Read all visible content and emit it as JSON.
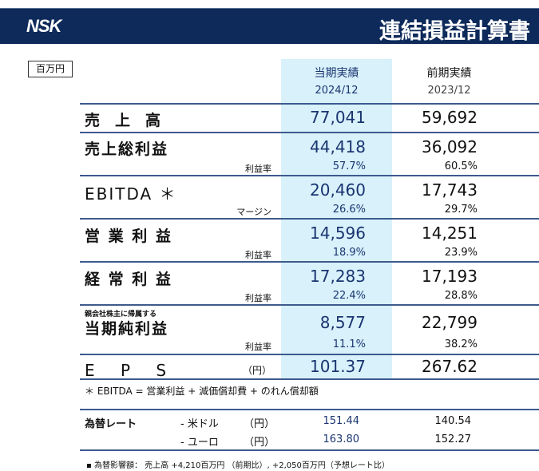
{
  "header": {
    "logo": "NSK",
    "title": "連結損益計算書"
  },
  "unit_label": "百万円",
  "columns": [
    {
      "label": "当期実績",
      "period": "2024/12"
    },
    {
      "label": "前期実績",
      "period": "2023/12"
    }
  ],
  "rows": [
    {
      "label": "売　上　高",
      "current": "77,041",
      "previous": "59,692"
    },
    {
      "label": "売上総利益",
      "sub_label": "利益率",
      "current": "44,418",
      "previous": "36,092",
      "current_rate": "57.7%",
      "previous_rate": "60.5%"
    },
    {
      "label": "EBITDA ＊",
      "sub_label": "マージン",
      "current": "20,460",
      "previous": "17,743",
      "current_rate": "26.6%",
      "previous_rate": "29.7%"
    },
    {
      "label": "営 業 利 益",
      "sub_label": "利益率",
      "current": "14,596",
      "previous": "14,251",
      "current_rate": "18.9%",
      "previous_rate": "23.9%"
    },
    {
      "label": "経 常 利 益",
      "sub_label": "利益率",
      "current": "17,283",
      "previous": "17,193",
      "current_rate": "22.4%",
      "previous_rate": "28.8%"
    },
    {
      "prefix": "親会社株主に帰属する",
      "label": "当期純利益",
      "sub_label": "利益率",
      "current": "8,577",
      "previous": "22,799",
      "current_rate": "11.1%",
      "previous_rate": "38.2%"
    },
    {
      "label": "E　 P　 S",
      "sub_label": "（円）",
      "current": "101.37",
      "previous": "267.62"
    }
  ],
  "footnote": "＊ EBITDA = 営業利益 + 減価償却費 + のれん償却額",
  "fx": {
    "label": "為替レート",
    "rows": [
      {
        "currency": "- 米ドル",
        "unit": "（円）",
        "current": "151.44",
        "previous": "140.54"
      },
      {
        "currency": "- ユーロ",
        "unit": "（円）",
        "current": "163.80",
        "previous": "152.27"
      }
    ]
  },
  "note": "▪ 為替影響額： 売上高 +4,210百万円 （前期比）, +2,050百万円（予想レート比）"
}
